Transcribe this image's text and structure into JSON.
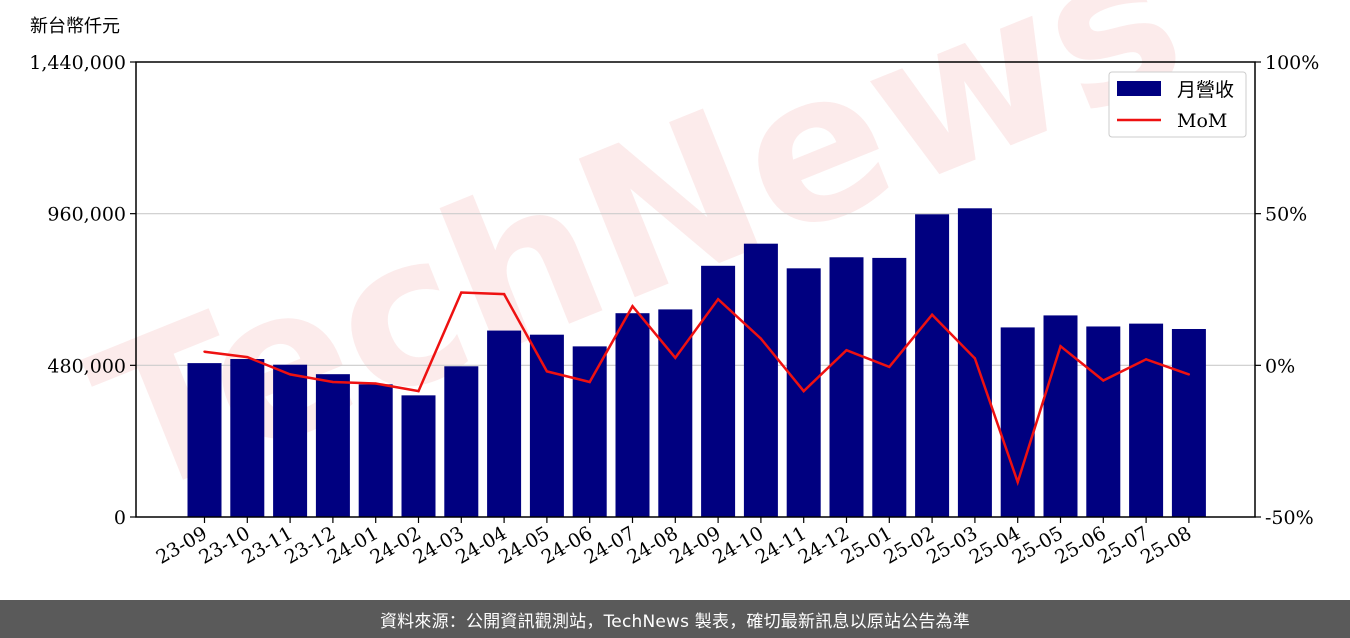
{
  "chart_data": {
    "type": "bar",
    "unit_label": "新台幣仟元",
    "watermark": "TechNews",
    "categories": [
      "23-09",
      "23-10",
      "23-11",
      "23-12",
      "24-01",
      "24-02",
      "24-03",
      "24-04",
      "24-05",
      "24-06",
      "24-07",
      "24-08",
      "24-09",
      "24-10",
      "24-11",
      "24-12",
      "25-01",
      "25-02",
      "25-03",
      "25-04",
      "25-05",
      "25-06",
      "25-07",
      "25-08"
    ],
    "series": [
      {
        "name": "月營收",
        "type": "bar",
        "axis": "left",
        "color": "#000080",
        "values": [
          487000,
          500000,
          482000,
          452000,
          420000,
          385000,
          477000,
          590000,
          577000,
          540000,
          645000,
          657000,
          795000,
          865000,
          787000,
          822000,
          820000,
          958000,
          977000,
          600000,
          638000,
          603000,
          612000,
          595000
        ]
      },
      {
        "name": "MoM",
        "type": "line",
        "axis": "right",
        "color": "#ee1111",
        "values": [
          4.5,
          2.7,
          -3.0,
          -5.5,
          -6.0,
          -8.5,
          24.0,
          23.5,
          -2.0,
          -5.5,
          19.5,
          2.5,
          21.8,
          8.8,
          -8.5,
          5.0,
          -0.5,
          16.7,
          2.3,
          -38.5,
          6.3,
          -5.0,
          2.0,
          -3.0
        ]
      }
    ],
    "y_left": {
      "min": 0,
      "max": 1440000,
      "ticks": [
        0,
        480000,
        960000,
        1440000
      ],
      "tick_labels": [
        "0",
        "480,000",
        "960,000",
        "1,440,000"
      ]
    },
    "y_right": {
      "min": -50,
      "max": 100,
      "ticks": [
        -50,
        0,
        50,
        100
      ],
      "tick_labels": [
        "-50%",
        "0%",
        "50%",
        "100%"
      ]
    },
    "grid": "horizontal",
    "legend": "top-right"
  },
  "footer": {
    "text": "資料來源：公開資訊觀測站，TechNews 製表，確切最新訊息以原站公告為準"
  }
}
